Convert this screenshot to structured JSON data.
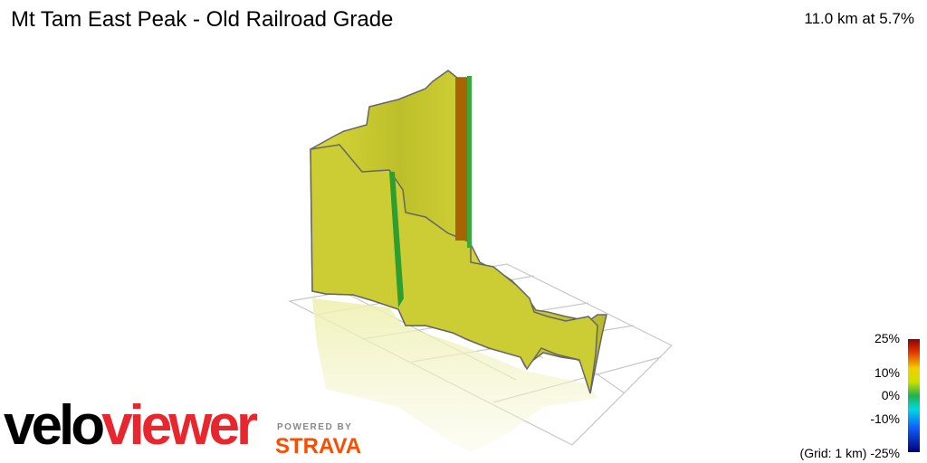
{
  "header": {
    "title": "Mt Tam East Peak - Old Railroad Grade",
    "stats": "11.0 km at 5.7%"
  },
  "legend": {
    "labels": [
      "25%",
      "10%",
      "0%",
      "-10%"
    ],
    "grid": "(Grid: 1 km)",
    "bottom": "-25%"
  },
  "logo": {
    "brand_a": "velo",
    "brand_b": "viewer",
    "powered": "POWERED BY",
    "strava": "STRAVA"
  }
}
